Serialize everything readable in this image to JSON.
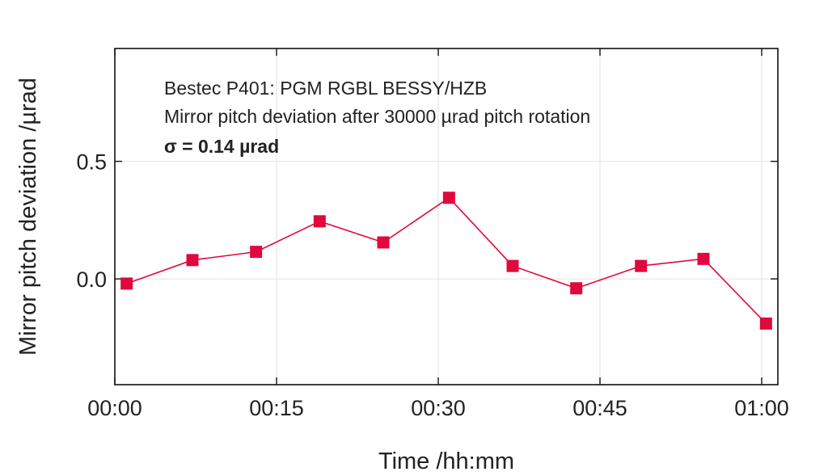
{
  "chart_data": {
    "type": "line",
    "title": "",
    "annotations": [
      "Bestec P401: PGM RGBL BESSY/HZB",
      "Mirror pitch deviation after 30000 µrad pitch rotation",
      "σ = 0.14 µrad"
    ],
    "xlabel": "Time /hh:mm",
    "ylabel": "Mirror pitch deviation /µrad",
    "x_ticks": [
      "00:00",
      "00:15",
      "00:30",
      "00:45",
      "01:00"
    ],
    "x_tick_minutes": [
      0,
      15,
      30,
      45,
      60
    ],
    "y_ticks": [
      "0.5",
      "0.0"
    ],
    "y_tick_values": [
      0.5,
      0.0
    ],
    "xlim_minutes": [
      0,
      61.5
    ],
    "ylim": [
      -0.45,
      0.98
    ],
    "grid": true,
    "legend": "none",
    "series": [
      {
        "color": "#e0083c",
        "marker": "square",
        "x_minutes": [
          1.1,
          7.2,
          13.1,
          19.0,
          24.9,
          31.0,
          36.9,
          42.8,
          48.8,
          54.6,
          60.4
        ],
        "values": [
          -0.02,
          0.08,
          0.115,
          0.245,
          0.155,
          0.345,
          0.055,
          -0.04,
          0.055,
          0.085,
          -0.19
        ]
      }
    ]
  }
}
